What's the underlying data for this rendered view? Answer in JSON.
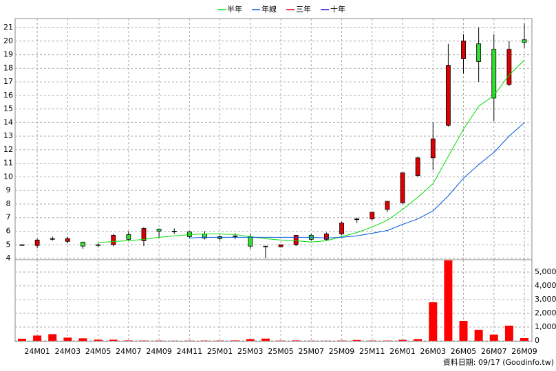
{
  "chart_data": {
    "type": "candlestick",
    "legend": [
      {
        "name": "半年",
        "color": "#00dd00"
      },
      {
        "name": "年線",
        "color": "#0055dd"
      },
      {
        "name": "三年",
        "color": "#dd0000"
      },
      {
        "name": "十年",
        "color": "#3300cc"
      }
    ],
    "categories": [
      null,
      "24M01",
      null,
      "24M03",
      null,
      "24M05",
      null,
      "24M07",
      null,
      "24M09",
      null,
      "24M11",
      null,
      "25M01",
      null,
      "25M03",
      null,
      "25M05",
      null,
      "25M07",
      null,
      "25M09",
      null,
      "25M11",
      null,
      "26M01",
      null,
      "26M03",
      null,
      "26M05",
      null,
      "26M07",
      null,
      "26M09"
    ],
    "open": [
      5.0,
      4.95,
      5.45,
      5.25,
      5.2,
      5.0,
      5.0,
      5.75,
      5.3,
      6.15,
      6.0,
      5.95,
      5.8,
      5.6,
      5.65,
      5.6,
      4.9,
      4.85,
      5.0,
      5.7,
      5.4,
      5.8,
      6.85,
      6.9,
      7.6,
      8.1,
      10.1,
      11.4,
      13.8,
      18.7,
      19.8,
      19.4,
      16.8,
      20.1
    ],
    "high": [
      5.0,
      5.45,
      5.6,
      5.6,
      5.2,
      5.1,
      5.8,
      6.0,
      6.3,
      6.2,
      6.2,
      6.0,
      6.0,
      5.7,
      5.85,
      5.8,
      4.9,
      5.0,
      5.7,
      5.8,
      5.9,
      6.7,
      7.0,
      7.4,
      8.2,
      10.3,
      11.5,
      14.0,
      19.8,
      20.5,
      21.0,
      20.5,
      20.0,
      21.3
    ],
    "low": [
      5.0,
      4.75,
      5.3,
      5.1,
      4.7,
      4.8,
      4.9,
      5.3,
      4.9,
      5.5,
      5.8,
      5.5,
      5.4,
      5.3,
      5.4,
      4.7,
      4.0,
      4.8,
      4.9,
      5.3,
      5.3,
      5.7,
      6.6,
      6.8,
      7.4,
      8.0,
      10.0,
      10.5,
      13.7,
      17.6,
      17.0,
      14.1,
      16.7,
      19.5
    ],
    "close": [
      5.0,
      5.35,
      5.4,
      5.45,
      4.9,
      4.95,
      5.7,
      5.4,
      6.2,
      6.0,
      5.95,
      5.6,
      5.5,
      5.45,
      5.65,
      4.9,
      4.85,
      5.0,
      5.7,
      5.4,
      5.8,
      6.6,
      6.9,
      7.4,
      8.2,
      10.3,
      11.4,
      12.8,
      18.2,
      20.0,
      18.5,
      15.8,
      19.4,
      19.9
    ],
    "up_color": "#dd0000",
    "down_color": "#33dd33",
    "series": [
      {
        "name": "半年",
        "color": "#00dd00",
        "values": [
          null,
          null,
          null,
          null,
          null,
          5.15,
          5.25,
          5.3,
          5.4,
          5.55,
          5.65,
          5.75,
          5.8,
          5.8,
          5.75,
          5.6,
          5.45,
          5.35,
          5.3,
          5.2,
          5.3,
          5.6,
          5.9,
          6.3,
          6.8,
          7.6,
          8.5,
          9.5,
          11.5,
          13.5,
          15.2,
          16.0,
          17.5,
          18.6
        ]
      },
      {
        "name": "年線",
        "color": "#0055dd",
        "values": [
          null,
          null,
          null,
          null,
          null,
          null,
          null,
          null,
          null,
          null,
          null,
          5.5,
          5.55,
          5.55,
          5.55,
          5.55,
          5.55,
          5.55,
          5.55,
          5.55,
          5.5,
          5.55,
          5.65,
          5.85,
          6.05,
          6.5,
          6.9,
          7.5,
          8.6,
          9.9,
          10.9,
          11.8,
          13.0,
          14.0
        ]
      }
    ],
    "ylim": [
      3.9,
      21.66
    ],
    "yticks": [
      4,
      5,
      6,
      7,
      8,
      9,
      10,
      11,
      12,
      13,
      14,
      15,
      16,
      17,
      18,
      19,
      20,
      21
    ],
    "volume": [
      150,
      380,
      480,
      230,
      180,
      80,
      80,
      30,
      20,
      20,
      10,
      15,
      20,
      20,
      30,
      120,
      160,
      20,
      30,
      10,
      10,
      20,
      60,
      20,
      20,
      70,
      120,
      2800,
      5850,
      1450,
      800,
      450,
      1100,
      200
    ],
    "volume_color": "#ff0000",
    "y2lim": [
      -50,
      5900
    ],
    "y2ticks": [
      0,
      {
        "value": 1000,
        "label": "1,000"
      },
      {
        "value": 2000,
        "label": "2,000"
      },
      {
        "value": 3000,
        "label": "3,000"
      },
      {
        "value": 4000,
        "label": "4,000"
      },
      {
        "value": 5000,
        "label": "5,000"
      }
    ],
    "grid": true,
    "source": "資料日期: 09/17 (Goodinfo.tw)"
  }
}
